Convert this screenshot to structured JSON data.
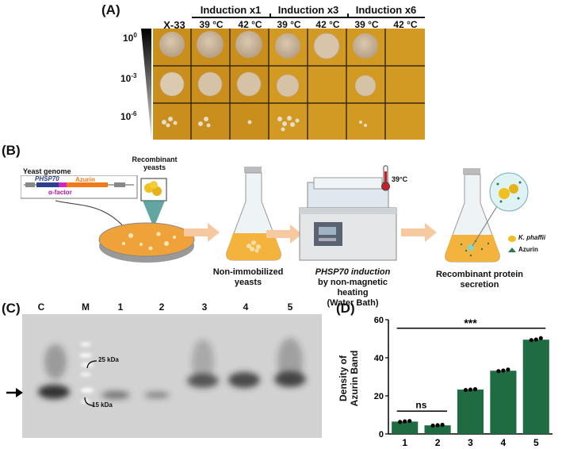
{
  "panelA": {
    "label": "(A)",
    "strain": "X-33",
    "groups": [
      "Induction x1",
      "Induction x3",
      "Induction x6"
    ],
    "temps": [
      "39 °C",
      "42 °C",
      "39 °C",
      "42 °C",
      "39 °C",
      "42 °C"
    ],
    "dilutions": [
      {
        "base": "10",
        "exp": "0"
      },
      {
        "base": "10",
        "exp": "-3"
      },
      {
        "base": "10",
        "exp": "-6"
      }
    ]
  },
  "panelB": {
    "label": "(B)",
    "genome_label": "Yeast genome",
    "promoter": "PHSP70",
    "gene": "Azurin",
    "signal": "α-factor",
    "recombinant_label": "Recombinant yeasts",
    "non_immobilized": "Non-immobilized yeasts",
    "induction_line1": "PHSP70 induction",
    "induction_line2": "by non-magnetic heating",
    "induction_line3": "(Water Bath)",
    "temperature": "39°C",
    "secretion": "Recombinant protein secretion",
    "legend_kp": "K. phaffii",
    "legend_azurin": "Azurin"
  },
  "panelC": {
    "label": "(C)",
    "lanes": [
      "C",
      "M",
      "1",
      "2",
      "3",
      "4",
      "5"
    ],
    "marker_25": "25 kDa",
    "marker_15": "15 kDa"
  },
  "panelD": {
    "label": "(D)",
    "ylabel_line1": "Density of",
    "ylabel_line2": "Azurin Band",
    "sig_top": "***",
    "sig_ns": "ns"
  },
  "chart_data": {
    "type": "bar",
    "categories": [
      "1",
      "2",
      "3",
      "4",
      "5"
    ],
    "values": [
      6.5,
      4.5,
      23.3,
      33.2,
      49.5
    ],
    "points": [
      [
        6.3,
        6.6,
        6.8
      ],
      [
        4.4,
        4.6,
        4.8
      ],
      [
        23.1,
        23.3,
        23.5
      ],
      [
        33.0,
        33.3,
        33.8
      ],
      [
        49.3,
        49.6,
        50.3
      ]
    ],
    "xlabel": "",
    "ylabel": "Density of Azurin Band",
    "ylim": [
      0,
      60
    ],
    "yticks": [
      0,
      20,
      40,
      60
    ],
    "color": "#1f6b42"
  }
}
